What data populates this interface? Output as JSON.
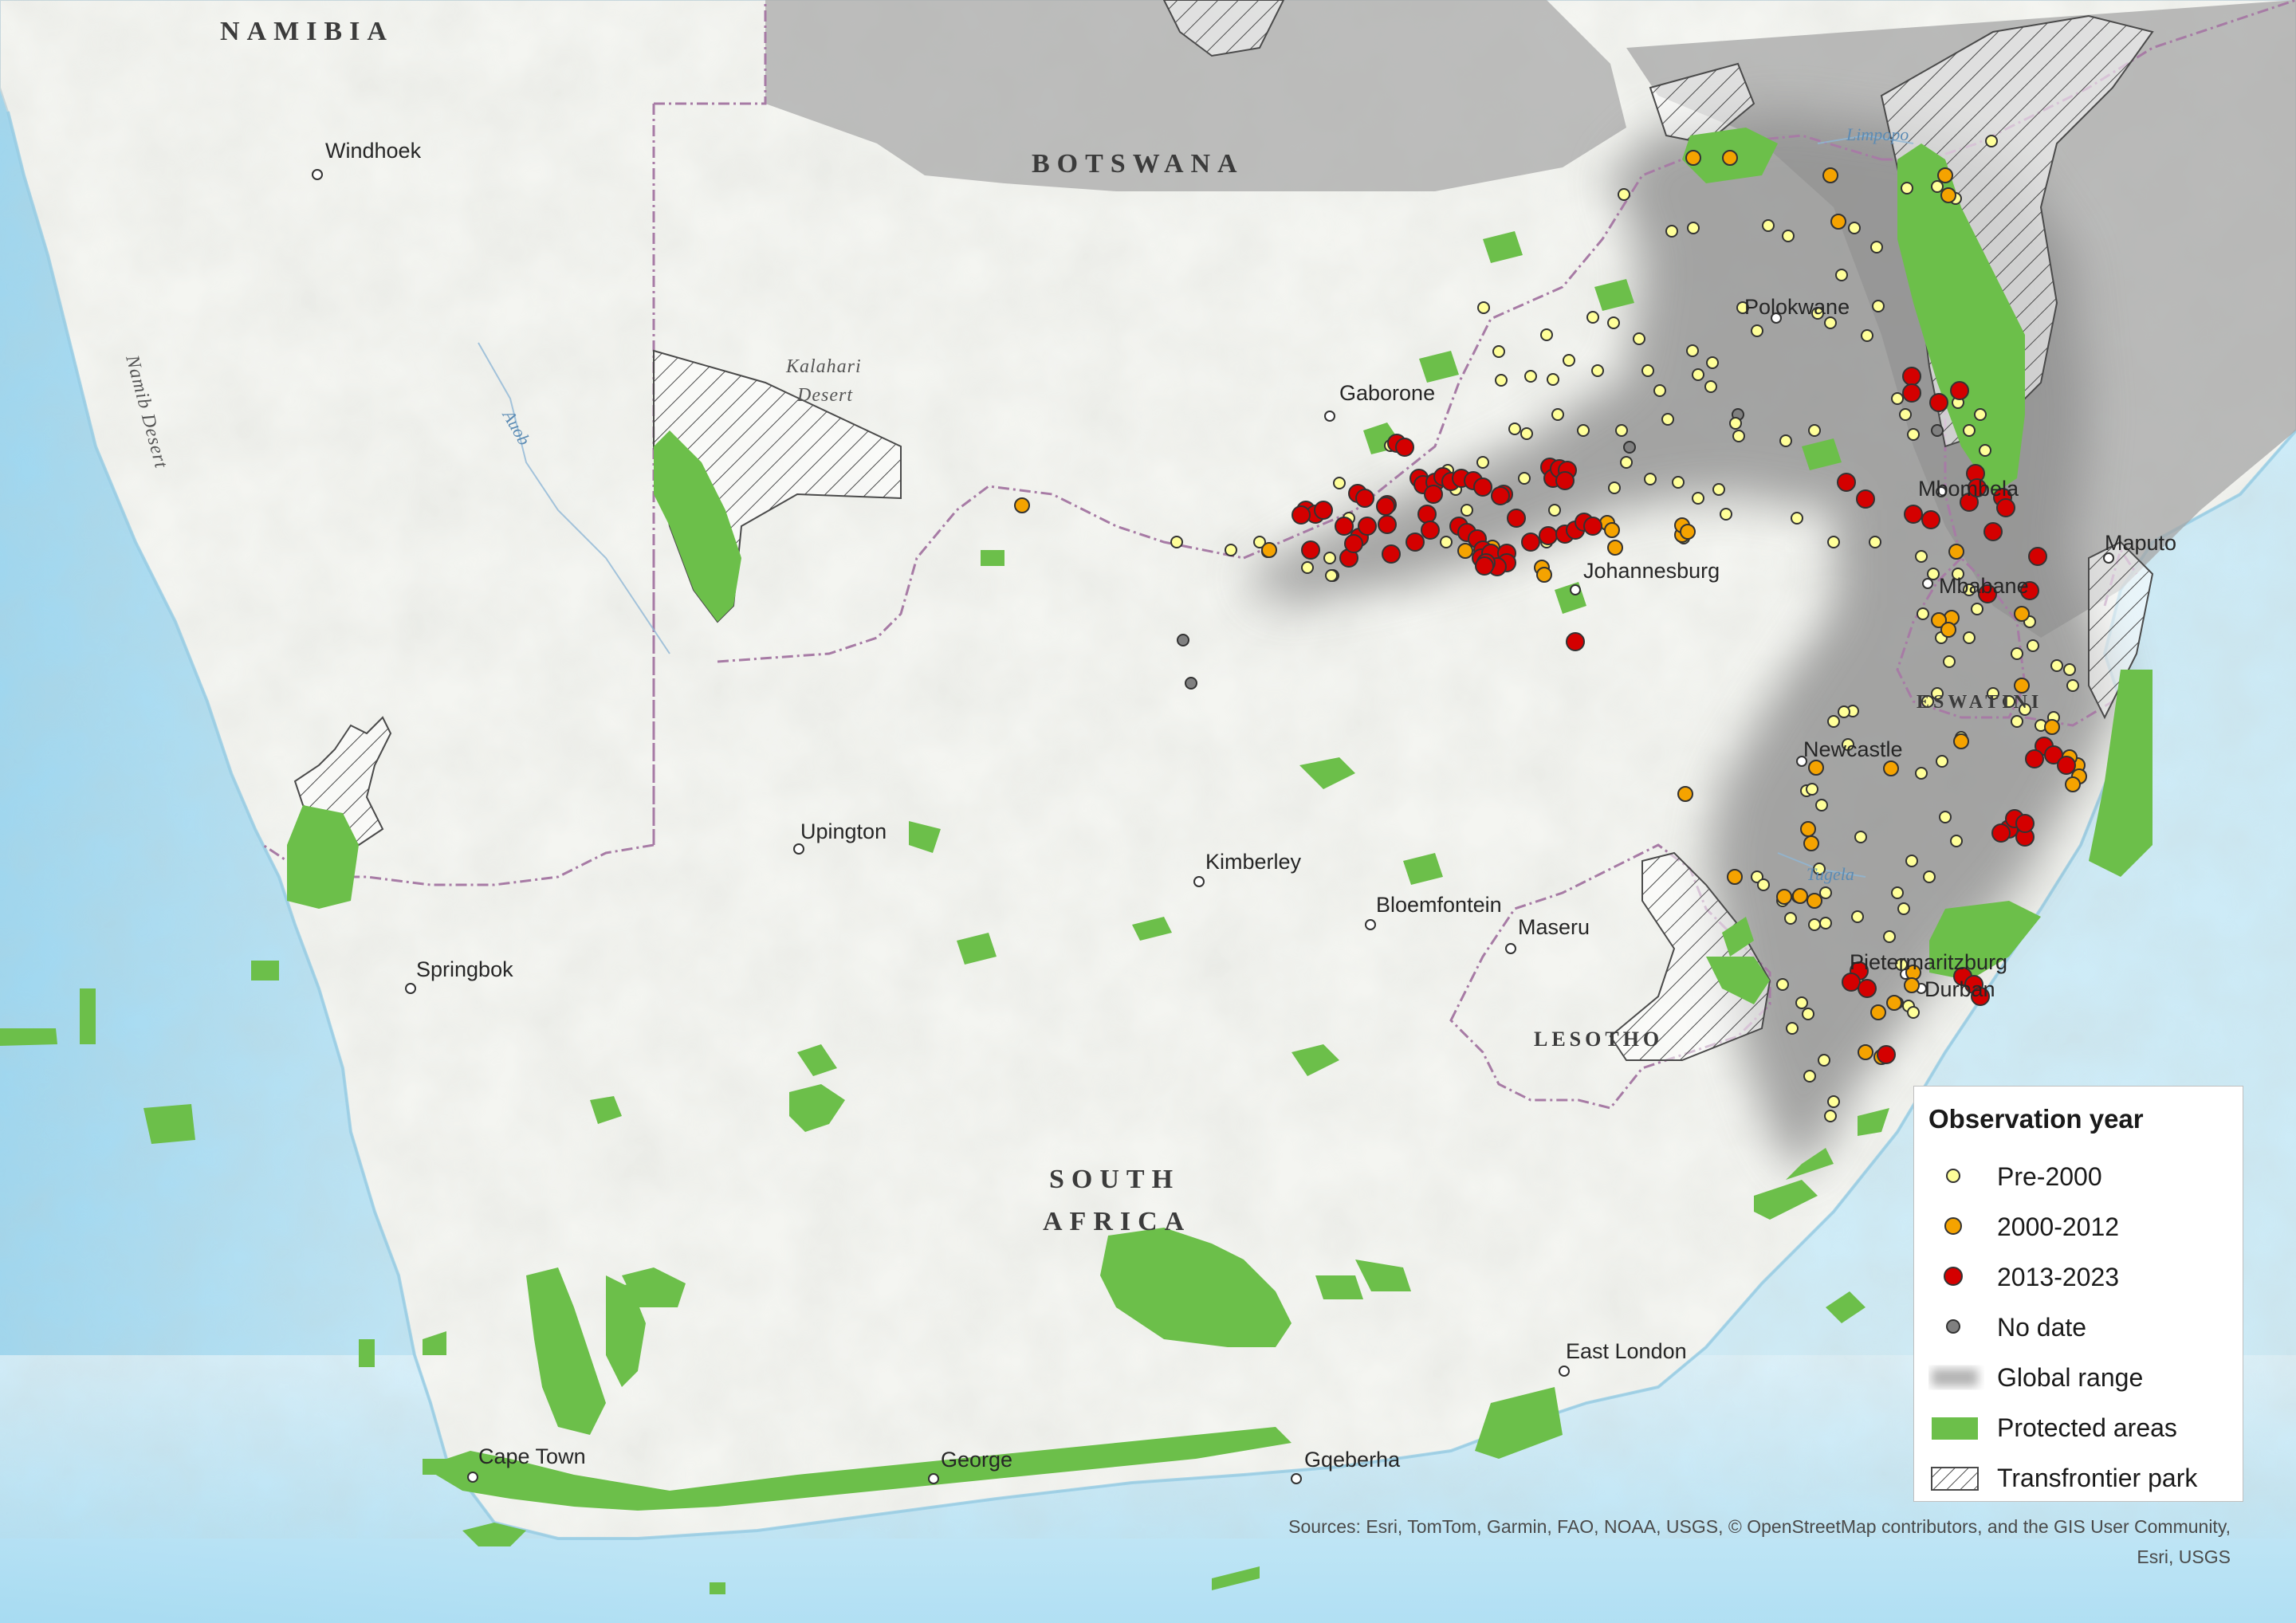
{
  "country_labels": {
    "namibia": "NAMIBIA",
    "botswana": "BOTSWANA",
    "lesotho": "LESOTHO",
    "south_africa_1": "SOUTH",
    "south_africa_2": "AFRICA",
    "eswatini": "ESWATINI"
  },
  "city_labels": {
    "windhoek": "Windhoek",
    "gaborone": "Gaborone",
    "polokwane": "Polokwane",
    "mbombela": "Mbombela",
    "maputo": "Maputo",
    "johannesburg": "Johannesburg",
    "mbabane": "Mbabane",
    "newcastle": "Newcastle",
    "upington": "Upington",
    "kimberley": "Kimberley",
    "bloemfontein": "Bloemfontein",
    "maseru": "Maseru",
    "springbok": "Springbok",
    "pietermaritzburg": "Pietermaritzburg",
    "durban": "Durban",
    "east_london": "East London",
    "cape_town": "Cape Town",
    "george": "George",
    "gqeberha": "Gqeberha"
  },
  "feature_labels": {
    "kalahari_1": "Kalahari",
    "kalahari_2": "Desert",
    "namib": "Namib Desert",
    "auob": "Auob",
    "limpopo": "Limpopo",
    "tugela": "Tugela"
  },
  "legend": {
    "title": "Observation year",
    "items": [
      {
        "label": "Pre-2000",
        "color": "#ffff99",
        "symbol": "small-circle"
      },
      {
        "label": "2000-2012",
        "color": "#f5a300",
        "symbol": "circle"
      },
      {
        "label": "2013-2023",
        "color": "#d40000",
        "symbol": "circle"
      },
      {
        "label": "No date",
        "color": "#808080",
        "symbol": "small-circle"
      },
      {
        "label": "Global range",
        "color": "#b3b3b3",
        "symbol": "blur-swatch"
      },
      {
        "label": "Protected areas",
        "color": "#6cbf4a",
        "symbol": "swatch"
      },
      {
        "label": "Transfrontier park",
        "color": "#ffffff",
        "symbol": "hatch"
      }
    ]
  },
  "attribution": {
    "line1": "Sources: Esri, TomTom, Garmin, FAO, NOAA, USGS, © OpenStreetMap contributors, and the GIS User Community,",
    "line2": "Esri, USGS"
  },
  "colors": {
    "ocean": "#bfe6f5",
    "land": "#f3f4f0",
    "protected": "#6cbf4a",
    "range": "#8c8c8c",
    "border": "#a77ba5"
  }
}
